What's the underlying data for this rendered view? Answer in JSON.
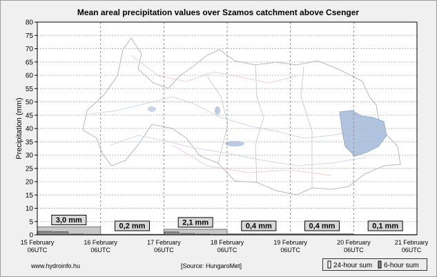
{
  "chart_data": {
    "type": "bar",
    "title": "Mean areal precipitation values over Szamos catchment above Csenger",
    "ylabel": "Precipitation (mm)",
    "xlabel": "",
    "ylim": [
      0,
      80
    ],
    "y_ticks": [
      0,
      5,
      10,
      15,
      20,
      25,
      30,
      35,
      40,
      45,
      50,
      55,
      60,
      65,
      70,
      75,
      80
    ],
    "x_tick_labels": [
      {
        "line1": "15 February",
        "line2": "06UTC"
      },
      {
        "line1": "16 February",
        "line2": "06UTC"
      },
      {
        "line1": "17 February",
        "line2": "06UTC"
      },
      {
        "line1": "18 February",
        "line2": "06UTC"
      },
      {
        "line1": "19 February",
        "line2": "06UTC"
      },
      {
        "line1": "20 February",
        "line2": "06UTC"
      },
      {
        "line1": "21 February",
        "line2": "06UTC"
      }
    ],
    "grid": true,
    "legend_placement": "bottom-right",
    "series": [
      {
        "name": "24-hour sum",
        "color": "#c8c8c8",
        "values": [
          3.0,
          0.2,
          2.1,
          0.4,
          0.4,
          0.1
        ],
        "labels": [
          "3,0 mm",
          "0,2 mm",
          "2,1 mm",
          "0,4 mm",
          "0,4 mm",
          "0,1 mm"
        ]
      },
      {
        "name": "6-hour sum",
        "color": "#8a8a8a",
        "values": [
          1.3,
          1.2,
          0.3,
          0.2,
          0.0,
          0.0,
          0.1,
          0.1,
          1.1,
          0.5,
          0.3,
          0.2,
          0.1,
          0.1,
          0.1,
          0.1,
          0.1,
          0.1,
          0.1,
          0.1,
          0.0,
          0.0,
          0.1,
          0.0
        ]
      }
    ],
    "footer": {
      "website": "www.hydroinfo.hu",
      "source": "[Source: HungaroMet]"
    }
  }
}
